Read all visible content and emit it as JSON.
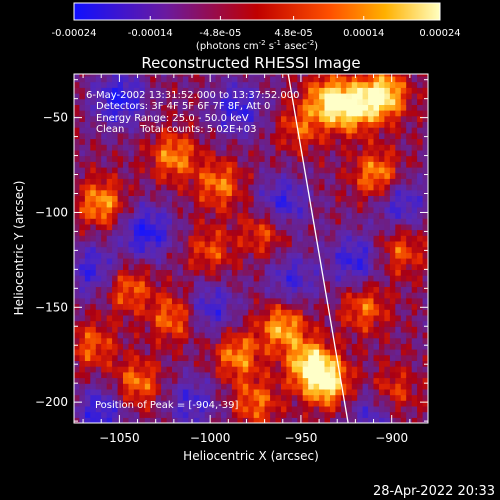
{
  "colorbar": {
    "tick_labels": [
      "-0.00024",
      "-0.00014",
      "-4.8e-05",
      "4.8e-05",
      "0.00014",
      "0.00024"
    ],
    "tick_values": [
      -0.00024,
      -0.00014,
      -4.8e-05,
      4.8e-05,
      0.00014,
      0.00024
    ],
    "range": [
      -0.00024,
      0.00024
    ],
    "units_prefix": "(photons cm",
    "units_sup1": "-2",
    "units_mid": " s",
    "units_sup2": "-1",
    "units_suffix": " asec",
    "units_sup3": "-2",
    "units_close": ")",
    "colors": [
      "#1010ff",
      "#6a1aa0",
      "#c00000",
      "#ff5000",
      "#ffb000",
      "#ffffc0"
    ]
  },
  "chart_data": {
    "type": "heatmap",
    "title": "Reconstructed RHESSI Image",
    "xlabel": "Heliocentric X (arcsec)",
    "ylabel": "Heliocentric Y (arcsec)",
    "xlim": [
      -1075,
      -880
    ],
    "ylim": [
      -211,
      -27
    ],
    "x_ticks": [
      -1050,
      -1000,
      -950,
      -900
    ],
    "x_tick_labels": [
      "−1050",
      "−1000",
      "−950",
      "−900"
    ],
    "y_ticks": [
      -50,
      -100,
      -150,
      -200
    ],
    "y_tick_labels": [
      "−50",
      "−100",
      "−150",
      "−200"
    ],
    "annotations": [
      "6-May-2002 13:31:52.000 to 13:37:52.000",
      "Detectors: 3F 4F 5F 6F 7F 8F, Att 0",
      "Energy Range: 25.0 - 50.0 keV",
      "Clean     Total counts: 5.02E+03"
    ],
    "peak_label": "Position of Peak = [-904,-39]",
    "limb_line": {
      "x": [
        -957,
        -924
      ],
      "y": [
        -27,
        -211
      ]
    },
    "hotspots": [
      {
        "x": -905,
        "y": -38,
        "level": 1.0
      },
      {
        "x": -922,
        "y": -45,
        "level": 0.8
      },
      {
        "x": -935,
        "y": -40,
        "level": 0.75
      },
      {
        "x": -908,
        "y": -80,
        "level": 0.7
      },
      {
        "x": -1020,
        "y": -70,
        "level": 0.65
      },
      {
        "x": -995,
        "y": -85,
        "level": 0.6
      },
      {
        "x": -1060,
        "y": -95,
        "level": 0.7
      },
      {
        "x": -1045,
        "y": -140,
        "level": 0.55
      },
      {
        "x": -1040,
        "y": -190,
        "level": 0.6
      },
      {
        "x": -985,
        "y": -175,
        "level": 0.65
      },
      {
        "x": -1020,
        "y": -155,
        "level": 0.6
      },
      {
        "x": -960,
        "y": -160,
        "level": 0.75
      },
      {
        "x": -945,
        "y": -180,
        "level": 0.9
      },
      {
        "x": -935,
        "y": -190,
        "level": 0.85
      },
      {
        "x": -915,
        "y": -150,
        "level": 0.55
      },
      {
        "x": -900,
        "y": -195,
        "level": 0.5
      },
      {
        "x": -970,
        "y": -110,
        "level": 0.5
      },
      {
        "x": -1000,
        "y": -120,
        "level": 0.45
      },
      {
        "x": -950,
        "y": -55,
        "level": 0.45
      },
      {
        "x": -1065,
        "y": -170,
        "level": 0.5
      },
      {
        "x": -975,
        "y": -200,
        "level": 0.55
      },
      {
        "x": -895,
        "y": -120,
        "level": 0.5
      }
    ],
    "colds": [
      {
        "x": -1050,
        "y": -40,
        "level": -0.7
      },
      {
        "x": -985,
        "y": -45,
        "level": -0.6
      },
      {
        "x": -1035,
        "y": -110,
        "level": -0.7
      },
      {
        "x": -960,
        "y": -95,
        "level": -0.6
      },
      {
        "x": -895,
        "y": -95,
        "level": -0.55
      },
      {
        "x": -1060,
        "y": -205,
        "level": -0.6
      },
      {
        "x": -1000,
        "y": -150,
        "level": -0.55
      },
      {
        "x": -920,
        "y": -125,
        "level": -0.6
      },
      {
        "x": -1010,
        "y": -200,
        "level": -0.5
      },
      {
        "x": -1065,
        "y": -130,
        "level": -0.55
      },
      {
        "x": -955,
        "y": -135,
        "level": -0.5
      },
      {
        "x": -910,
        "y": -205,
        "level": -0.5
      }
    ]
  },
  "footer": {
    "timestamp": "28-Apr-2022 20:33"
  }
}
